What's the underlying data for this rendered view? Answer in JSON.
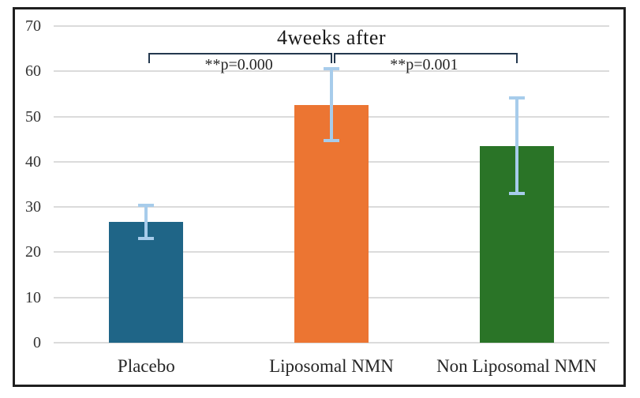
{
  "chart_data": {
    "type": "bar",
    "title": "4weeks after",
    "categories": [
      "Placebo",
      "Liposomal NMN",
      "Non Liposomal NMN"
    ],
    "values": [
      26.7,
      52.6,
      43.5
    ],
    "error_low": [
      23.0,
      44.7,
      33.0
    ],
    "error_high": [
      30.4,
      60.5,
      54.1
    ],
    "bar_colors": [
      "#1F6587",
      "#EC7532",
      "#2A7427"
    ],
    "error_bar_color": "#A7CCEB",
    "bracket_color": "#24384E",
    "gridline_color": "#DBDBDB",
    "title_color": "#1a1a1a",
    "ylim": [
      0,
      70
    ],
    "yticks": [
      0,
      10,
      20,
      30,
      40,
      50,
      60,
      70
    ],
    "xlabel": "",
    "ylabel": "",
    "grid": true,
    "legend_position": "none",
    "annotations": [
      {
        "type": "significance_bracket",
        "from": "Placebo",
        "to": "Liposomal NMN",
        "label": "**p=0.000"
      },
      {
        "type": "significance_bracket",
        "from": "Liposomal NMN",
        "to": "Non Liposomal NMN",
        "label": "**p=0.001"
      }
    ]
  }
}
